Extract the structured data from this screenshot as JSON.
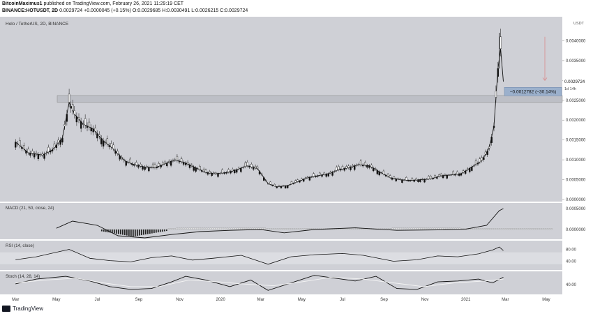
{
  "header": {
    "author": "BitcoinMaximus1",
    "published": "published on TradingView.com, February 26, 2021 11:29:19 CET",
    "symbol": "BINANCE:HOTUSDT, 2D",
    "last": "0.0029724",
    "change": "+0.0000045 (+0.15%)",
    "o_label": "O:",
    "o": "0.0029685",
    "h_label": "H:",
    "h": "0.0030491",
    "l_label": "L:",
    "l": "0.0026215",
    "c_label": "C:",
    "c": "0.0029724"
  },
  "footer": {
    "brand": "TradingView"
  },
  "chart_data": [
    {
      "type": "candlestick",
      "title": "Holo / TetherUS, 2D, BINANCE",
      "ylabel": "USDT",
      "ylim": [
        0,
        0.0045
      ],
      "y_ticks": [
        "0.0040000",
        "0.0035000",
        "0.0030000",
        "0.0025000",
        "0.0020000",
        "0.0015000",
        "0.0010000",
        "0.0005000",
        "0.0000000"
      ],
      "x_ticks": [
        "Mar",
        "May",
        "Jul",
        "Sep",
        "Nov",
        "2020",
        "Mar",
        "May",
        "Jul",
        "Sep",
        "Nov",
        "2021",
        "Mar",
        "May"
      ],
      "last_price_label": "0.0029724",
      "countdown_label": "1d 14h",
      "measure_label": "−0.0012782 (−30.14%)",
      "series": [
        {
          "name": "close",
          "points": [
            [
              "2019-03-01",
              0.00145
            ],
            [
              "2019-03-20",
              0.00118
            ],
            [
              "2019-04-10",
              0.00112
            ],
            [
              "2019-04-25",
              0.00125
            ],
            [
              "2019-05-10",
              0.00155
            ],
            [
              "2019-05-20",
              0.00245
            ],
            [
              "2019-05-28",
              0.00215
            ],
            [
              "2019-06-10",
              0.0019
            ],
            [
              "2019-06-25",
              0.00178
            ],
            [
              "2019-07-10",
              0.00148
            ],
            [
              "2019-07-25",
              0.00128
            ],
            [
              "2019-08-10",
              0.00098
            ],
            [
              "2019-08-25",
              0.00088
            ],
            [
              "2019-09-10",
              0.00082
            ],
            [
              "2019-09-25",
              0.0008
            ],
            [
              "2019-10-10",
              0.0009
            ],
            [
              "2019-10-25",
              0.001
            ],
            [
              "2019-11-10",
              0.00092
            ],
            [
              "2019-11-25",
              0.0008
            ],
            [
              "2019-12-10",
              0.00068
            ],
            [
              "2019-12-25",
              0.00065
            ],
            [
              "2020-01-10",
              0.00068
            ],
            [
              "2020-01-25",
              0.00075
            ],
            [
              "2020-02-10",
              0.00085
            ],
            [
              "2020-02-25",
              0.00078
            ],
            [
              "2020-03-12",
              0.0004
            ],
            [
              "2020-03-25",
              0.00032
            ],
            [
              "2020-04-10",
              0.00035
            ],
            [
              "2020-04-25",
              0.00045
            ],
            [
              "2020-05-10",
              0.00055
            ],
            [
              "2020-05-25",
              0.0006
            ],
            [
              "2020-06-10",
              0.00065
            ],
            [
              "2020-06-25",
              0.00075
            ],
            [
              "2020-07-10",
              0.0008
            ],
            [
              "2020-07-25",
              0.00088
            ],
            [
              "2020-08-10",
              0.00085
            ],
            [
              "2020-08-25",
              0.0007
            ],
            [
              "2020-09-10",
              0.00055
            ],
            [
              "2020-09-25",
              0.0005
            ],
            [
              "2020-10-10",
              0.00048
            ],
            [
              "2020-10-25",
              0.0005
            ],
            [
              "2020-11-10",
              0.00052
            ],
            [
              "2020-11-25",
              0.0006
            ],
            [
              "2020-12-10",
              0.00062
            ],
            [
              "2020-12-25",
              0.00065
            ],
            [
              "2021-01-10",
              0.00082
            ],
            [
              "2021-01-25",
              0.00098
            ],
            [
              "2021-02-05",
              0.0013
            ],
            [
              "2021-02-12",
              0.00185
            ],
            [
              "2021-02-18",
              0.0033
            ],
            [
              "2021-02-22",
              0.0038
            ],
            [
              "2021-02-26",
              0.0029724
            ]
          ]
        }
      ]
    },
    {
      "type": "line",
      "title": "MACD (21, 50, close, 24)",
      "y_ticks": [
        "0.0005000",
        "0.0000000"
      ],
      "series": [
        {
          "name": "MACD",
          "points": [
            [
              "2019-05-01",
              3e-05
            ],
            [
              "2019-05-25",
              0.0002
            ],
            [
              "2019-07-01",
              0.0001
            ],
            [
              "2019-08-01",
              -0.00015
            ],
            [
              "2019-09-10",
              -0.0002
            ],
            [
              "2019-10-20",
              -0.00012
            ],
            [
              "2019-12-01",
              -5e-05
            ],
            [
              "2020-01-15",
              -2e-05
            ],
            [
              "2020-03-01",
              0.0
            ],
            [
              "2020-04-05",
              -8e-05
            ],
            [
              "2020-05-20",
              0.0
            ],
            [
              "2020-07-20",
              4e-05
            ],
            [
              "2020-09-20",
              -2e-05
            ],
            [
              "2020-11-20",
              -1e-05
            ],
            [
              "2021-01-01",
              1e-05
            ],
            [
              "2021-02-01",
              0.0001
            ],
            [
              "2021-02-20",
              0.00045
            ],
            [
              "2021-02-26",
              0.0005
            ]
          ]
        }
      ]
    },
    {
      "type": "line",
      "title": "RSI (14, close)",
      "y_ticks": [
        "80.00",
        "40.00"
      ],
      "series": [
        {
          "name": "RSI",
          "points": [
            [
              "2019-03-01",
              45
            ],
            [
              "2019-04-01",
              55
            ],
            [
              "2019-05-20",
              80
            ],
            [
              "2019-06-20",
              50
            ],
            [
              "2019-07-20",
              42
            ],
            [
              "2019-08-20",
              38
            ],
            [
              "2019-09-20",
              52
            ],
            [
              "2019-10-20",
              58
            ],
            [
              "2019-11-20",
              44
            ],
            [
              "2019-12-20",
              50
            ],
            [
              "2020-02-01",
              60
            ],
            [
              "2020-03-12",
              30
            ],
            [
              "2020-04-15",
              55
            ],
            [
              "2020-05-20",
              62
            ],
            [
              "2020-07-01",
              66
            ],
            [
              "2020-08-01",
              60
            ],
            [
              "2020-09-15",
              40
            ],
            [
              "2020-10-20",
              45
            ],
            [
              "2020-11-20",
              58
            ],
            [
              "2020-12-20",
              55
            ],
            [
              "2021-01-20",
              65
            ],
            [
              "2021-02-10",
              78
            ],
            [
              "2021-02-20",
              88
            ],
            [
              "2021-02-26",
              76
            ]
          ]
        }
      ]
    },
    {
      "type": "line",
      "title": "Stoch (14, 28, 14)",
      "y_ticks": [
        "40.00"
      ],
      "series": [
        {
          "name": "%K",
          "points": [
            [
              "2019-03-01",
              45
            ],
            [
              "2019-04-01",
              70
            ],
            [
              "2019-05-15",
              85
            ],
            [
              "2019-06-20",
              60
            ],
            [
              "2019-07-20",
              30
            ],
            [
              "2019-08-20",
              15
            ],
            [
              "2019-09-20",
              20
            ],
            [
              "2019-10-20",
              55
            ],
            [
              "2019-11-10",
              85
            ],
            [
              "2019-12-10",
              65
            ],
            [
              "2020-01-15",
              30
            ],
            [
              "2020-02-15",
              65
            ],
            [
              "2020-03-12",
              10
            ],
            [
              "2020-04-20",
              55
            ],
            [
              "2020-05-20",
              90
            ],
            [
              "2020-06-20",
              75
            ],
            [
              "2020-07-20",
              60
            ],
            [
              "2020-08-20",
              85
            ],
            [
              "2020-09-20",
              20
            ],
            [
              "2020-10-20",
              15
            ],
            [
              "2020-11-20",
              55
            ],
            [
              "2020-12-20",
              60
            ],
            [
              "2021-01-20",
              70
            ],
            [
              "2021-02-10",
              50
            ],
            [
              "2021-02-26",
              80
            ]
          ]
        },
        {
          "name": "%D",
          "points": [
            [
              "2019-03-01",
              50
            ],
            [
              "2019-04-15",
              65
            ],
            [
              "2019-05-30",
              75
            ],
            [
              "2019-07-10",
              50
            ],
            [
              "2019-08-20",
              30
            ],
            [
              "2019-10-01",
              30
            ],
            [
              "2019-11-15",
              65
            ],
            [
              "2019-12-30",
              55
            ],
            [
              "2020-02-01",
              45
            ],
            [
              "2020-03-20",
              35
            ],
            [
              "2020-05-01",
              55
            ],
            [
              "2020-06-15",
              80
            ],
            [
              "2020-08-01",
              70
            ],
            [
              "2020-09-15",
              50
            ],
            [
              "2020-10-30",
              30
            ],
            [
              "2020-12-15",
              50
            ],
            [
              "2021-01-30",
              60
            ],
            [
              "2021-02-26",
              70
            ]
          ]
        }
      ]
    }
  ]
}
